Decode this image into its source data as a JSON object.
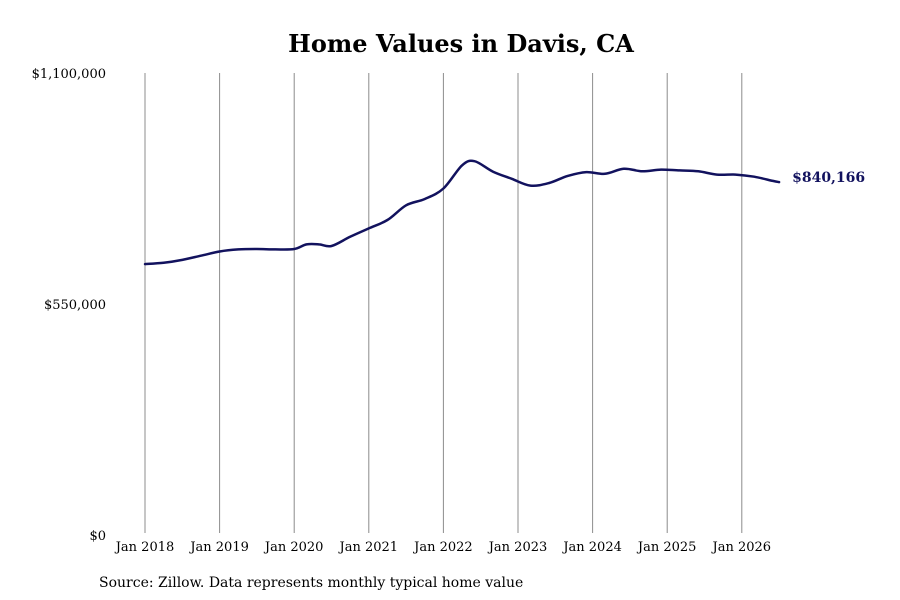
{
  "chart_data": {
    "type": "line",
    "title": "Home Values in Davis, CA",
    "xlabel": "",
    "ylabel": "",
    "ylim": [
      0,
      1100000
    ],
    "y_ticks": [
      {
        "value": 0,
        "label": "$0"
      },
      {
        "value": 550000,
        "label": "$550,000"
      },
      {
        "value": 1100000,
        "label": "$1,100,000"
      }
    ],
    "x_ticks": [
      {
        "date": "2018-01",
        "label": "Jan 2018"
      },
      {
        "date": "2019-01",
        "label": "Jan 2019"
      },
      {
        "date": "2020-01",
        "label": "Jan 2020"
      },
      {
        "date": "2021-01",
        "label": "Jan 2021"
      },
      {
        "date": "2022-01",
        "label": "Jan 2022"
      },
      {
        "date": "2023-01",
        "label": "Jan 2023"
      },
      {
        "date": "2024-01",
        "label": "Jan 2024"
      },
      {
        "date": "2025-01",
        "label": "Jan 2025"
      },
      {
        "date": "2026-01",
        "label": "Jan 2026"
      }
    ],
    "grid": {
      "vertical": true,
      "horizontal": false
    },
    "series": [
      {
        "color": "#12125e",
        "points": [
          {
            "x": "2018-01",
            "y": 645000
          },
          {
            "x": "2018-04",
            "y": 648000
          },
          {
            "x": "2018-07",
            "y": 655000
          },
          {
            "x": "2018-10",
            "y": 665000
          },
          {
            "x": "2019-01",
            "y": 675000
          },
          {
            "x": "2019-04",
            "y": 680000
          },
          {
            "x": "2019-07",
            "y": 681000
          },
          {
            "x": "2019-10",
            "y": 680000
          },
          {
            "x": "2020-01",
            "y": 681000
          },
          {
            "x": "2020-03",
            "y": 692000
          },
          {
            "x": "2020-05",
            "y": 692000
          },
          {
            "x": "2020-07",
            "y": 688000
          },
          {
            "x": "2020-10",
            "y": 710000
          },
          {
            "x": "2021-01",
            "y": 730000
          },
          {
            "x": "2021-04",
            "y": 750000
          },
          {
            "x": "2021-07",
            "y": 785000
          },
          {
            "x": "2021-10",
            "y": 800000
          },
          {
            "x": "2022-01",
            "y": 825000
          },
          {
            "x": "2022-04",
            "y": 880000
          },
          {
            "x": "2022-06",
            "y": 890000
          },
          {
            "x": "2022-09",
            "y": 865000
          },
          {
            "x": "2022-12",
            "y": 848000
          },
          {
            "x": "2023-03",
            "y": 832000
          },
          {
            "x": "2023-06",
            "y": 838000
          },
          {
            "x": "2023-09",
            "y": 855000
          },
          {
            "x": "2023-12",
            "y": 864000
          },
          {
            "x": "2024-03",
            "y": 860000
          },
          {
            "x": "2024-06",
            "y": 872000
          },
          {
            "x": "2024-09",
            "y": 866000
          },
          {
            "x": "2024-12",
            "y": 870000
          },
          {
            "x": "2025-03",
            "y": 868000
          },
          {
            "x": "2025-06",
            "y": 866000
          },
          {
            "x": "2025-09",
            "y": 858000
          },
          {
            "x": "2025-12",
            "y": 858000
          },
          {
            "x": "2026-03",
            "y": 853000
          },
          {
            "x": "2026-06",
            "y": 843000
          },
          {
            "x": "2026-07",
            "y": 840166
          }
        ]
      }
    ],
    "end_label": "$840,166"
  },
  "source_note": "Source: Zillow. Data represents monthly typical home value"
}
